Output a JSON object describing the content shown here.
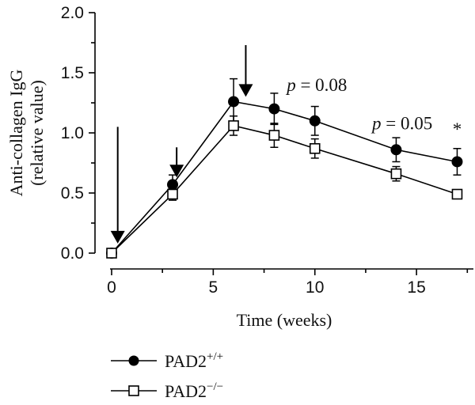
{
  "chart_data": {
    "type": "line",
    "xlabel": "Time (weeks)",
    "ylabel_lines": [
      "Anti-collagen IgG",
      "(relative value)"
    ],
    "xlim": [
      0,
      17.8
    ],
    "ylim": [
      0,
      2.0
    ],
    "x_ticks": [
      0,
      5,
      10,
      15
    ],
    "x_tick_labels": [
      "0",
      "5",
      "10",
      "15"
    ],
    "y_ticks": [
      0.0,
      0.5,
      1.0,
      1.5,
      2.0
    ],
    "y_tick_labels": [
      "0.0",
      "0.5",
      "1.0",
      "1.5",
      "2.0"
    ],
    "grid": false,
    "legend_position": "bottom-left",
    "series": [
      {
        "name": "PAD2+/+",
        "legend_base": "PAD2",
        "legend_sup": "+/+",
        "marker": "filled-circle",
        "x": [
          0,
          3,
          6,
          8,
          10,
          14,
          17
        ],
        "y": [
          0.0,
          0.57,
          1.26,
          1.2,
          1.1,
          0.86,
          0.76
        ],
        "err": [
          0.0,
          0.08,
          0.19,
          0.13,
          0.12,
          0.1,
          0.11
        ]
      },
      {
        "name": "PAD2−/−",
        "legend_base": "PAD2",
        "legend_sup": "−/−",
        "marker": "open-square",
        "x": [
          0,
          3,
          6,
          8,
          10,
          14,
          17
        ],
        "y": [
          0.0,
          0.49,
          1.06,
          0.98,
          0.87,
          0.66,
          0.49
        ],
        "err": [
          0.0,
          0.05,
          0.08,
          0.1,
          0.08,
          0.06,
          0.0
        ]
      }
    ],
    "arrows": [
      {
        "x": 0.3,
        "y_top": 1.05,
        "y_tip": 0.08
      },
      {
        "x": 3.2,
        "y_top": 0.88,
        "y_tip": 0.63
      },
      {
        "x": 6.6,
        "y_top": 1.73,
        "y_tip": 1.3
      }
    ],
    "annotations": [
      {
        "x": 10.1,
        "y": 1.35,
        "p_label": "p",
        "rest": " = 0.08"
      },
      {
        "x": 14.3,
        "y": 1.03,
        "p_label": "p",
        "rest": " = 0.05"
      },
      {
        "x": 17.0,
        "y": 0.98,
        "p_label": "",
        "rest": "*"
      }
    ]
  }
}
